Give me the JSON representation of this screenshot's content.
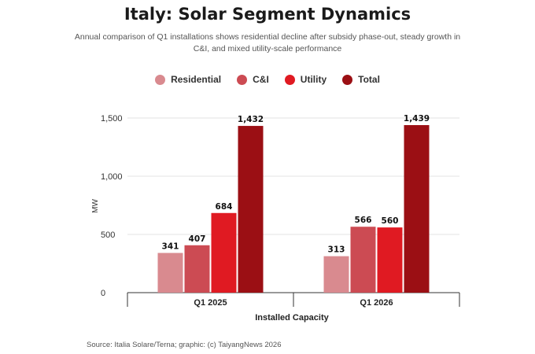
{
  "chart_data": {
    "type": "bar",
    "title": "Italy: Solar Segment Dynamics",
    "subtitle": "Annual comparison of Q1 installations shows residential decline after subsidy phase-out, steady growth in C&I, and mixed utility-scale performance",
    "categories": [
      "Q1 2025",
      "Q1 2026"
    ],
    "series": [
      {
        "name": "Residential",
        "color": "#d98a8f",
        "values": [
          341,
          313
        ],
        "labels": [
          "341",
          "313"
        ]
      },
      {
        "name": "C&I",
        "color": "#cc4b53",
        "values": [
          407,
          566
        ],
        "labels": [
          "407",
          "566"
        ]
      },
      {
        "name": "Utility",
        "color": "#e01a22",
        "values": [
          684,
          560
        ],
        "labels": [
          "684",
          "560"
        ]
      },
      {
        "name": "Total",
        "color": "#9b0f14",
        "values": [
          1432,
          1439
        ],
        "labels": [
          "1,432",
          "1,439"
        ]
      }
    ],
    "xlabel": "Installed Capacity",
    "ylabel": "MW",
    "ylim": [
      0,
      1500
    ],
    "yticks": [
      0,
      500,
      1000,
      1500
    ],
    "ytick_labels": [
      "0",
      "500",
      "1,000",
      "1,500"
    ],
    "grid": true,
    "legend_position": "top"
  },
  "source": "Source: Italia Solare/Terna; graphic: (c) TaiyangNews 2026"
}
